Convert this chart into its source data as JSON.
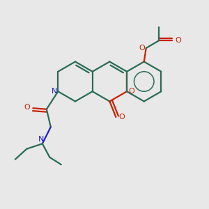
{
  "bg_color": "#e8e8e8",
  "bond_color": "#2a6b55",
  "oxygen_color": "#cc2000",
  "nitrogen_color": "#2020cc",
  "line_width": 1.6,
  "figsize": [
    3.0,
    3.0
  ],
  "dpi": 100,
  "xlim": [
    0,
    10
  ],
  "ylim": [
    0,
    10
  ]
}
